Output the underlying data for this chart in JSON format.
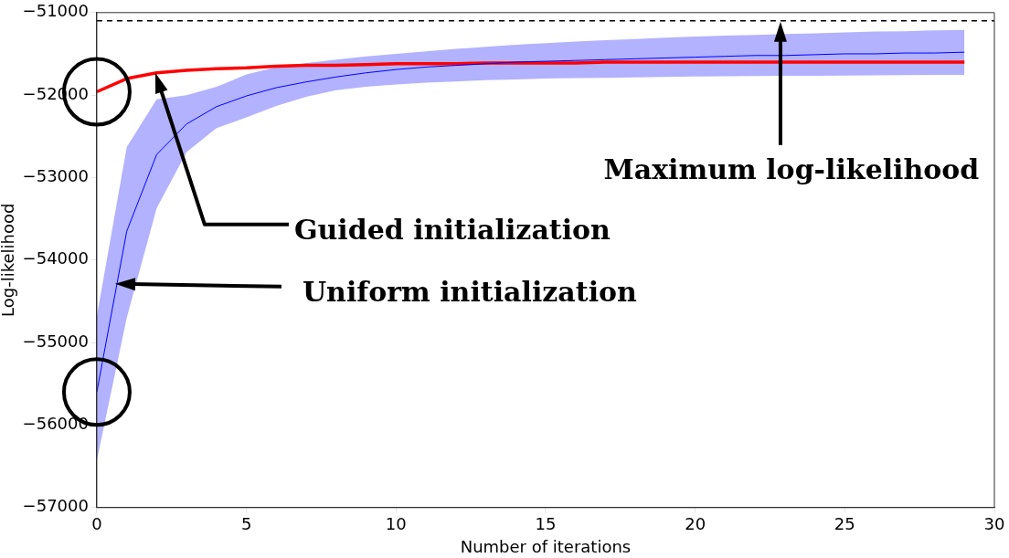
{
  "chart_data": {
    "type": "line",
    "xlabel": "Number of iterations",
    "ylabel": "Log-likelihood",
    "x": [
      0,
      1,
      2,
      3,
      4,
      5,
      6,
      7,
      8,
      9,
      10,
      11,
      12,
      13,
      14,
      15,
      16,
      17,
      18,
      19,
      20,
      21,
      22,
      23,
      24,
      25,
      26,
      27,
      28,
      29
    ],
    "series": [
      {
        "color": "#0000ff",
        "values": [
          -55600,
          -53650,
          -52720,
          -52350,
          -52140,
          -52010,
          -51910,
          -51840,
          -51780,
          -51730,
          -51690,
          -51660,
          -51640,
          -51620,
          -51600,
          -51590,
          -51580,
          -51570,
          -51560,
          -51550,
          -51540,
          -51530,
          -51520,
          -51520,
          -51510,
          -51500,
          -51500,
          -51490,
          -51490,
          -51480
        ],
        "upper": [
          -54680,
          -52630,
          -52050,
          -52000,
          -51900,
          -51750,
          -51660,
          -51610,
          -51570,
          -51530,
          -51500,
          -51470,
          -51440,
          -51415,
          -51390,
          -51370,
          -51350,
          -51335,
          -51320,
          -51305,
          -51290,
          -51280,
          -51270,
          -51260,
          -51250,
          -51240,
          -51230,
          -51225,
          -51215,
          -51210
        ],
        "lower": [
          -56430,
          -54700,
          -53370,
          -52690,
          -52400,
          -52270,
          -52130,
          -52020,
          -51940,
          -51900,
          -51870,
          -51850,
          -51835,
          -51820,
          -51810,
          -51800,
          -51795,
          -51790,
          -51785,
          -51780,
          -51775,
          -51772,
          -51770,
          -51767,
          -51765,
          -51762,
          -51760,
          -51758,
          -51756,
          -51755
        ]
      },
      {
        "color": "#ff0000",
        "values": [
          -51960,
          -51800,
          -51730,
          -51700,
          -51680,
          -51670,
          -51650,
          -51640,
          -51640,
          -51630,
          -51620,
          -51620,
          -51620,
          -51610,
          -51610,
          -51610,
          -51610,
          -51600,
          -51600,
          -51600,
          -51600,
          -51600,
          -51600,
          -51600,
          -51600,
          -51600,
          -51600,
          -51600,
          -51600,
          -51600
        ]
      }
    ],
    "ref_lines": [
      {
        "axis": "y",
        "value": -51100,
        "color": "#000000",
        "line_style": "dashed"
      }
    ],
    "annotations": [
      "Guided initialization",
      "Uniform initialization",
      "Maximum log-likelihood"
    ],
    "xlim": [
      0,
      30
    ],
    "xticks": [
      0,
      5,
      10,
      15,
      20,
      25,
      30
    ],
    "ylim": [
      -57000,
      -51000
    ],
    "yticks": [
      -57000,
      -56000,
      -55000,
      -54000,
      -53000,
      -52000,
      -51000
    ],
    "grid": false,
    "legend": false,
    "marker": "none",
    "line_style": "solid"
  }
}
